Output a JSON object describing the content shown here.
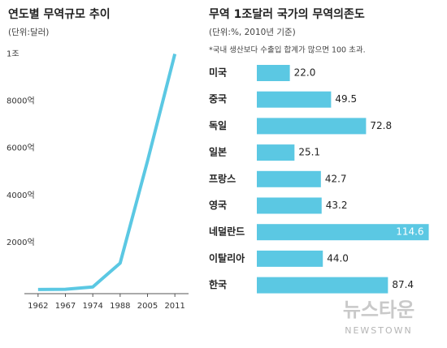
{
  "chart_data": [
    {
      "type": "line",
      "title": "연도별 무역규모 추이",
      "subtitle": "(단위:달러)",
      "categories": [
        "1962",
        "1967",
        "1974",
        "1988",
        "2005",
        "2011"
      ],
      "values": [
        5,
        14,
        112,
        1125,
        5457,
        10000
      ],
      "color": "#5bc8e3",
      "ylim": [
        0,
        10500
      ],
      "yticks": [
        {
          "value": 2000,
          "label": "2000억"
        },
        {
          "value": 4000,
          "label": "4000억"
        },
        {
          "value": 6000,
          "label": "6000억"
        },
        {
          "value": 8000,
          "label": "8000억"
        },
        {
          "value": 10000,
          "label": "1조"
        }
      ]
    },
    {
      "type": "hbar",
      "title": "무역 1조달러 국가의 무역의존도",
      "subtitle": "(단위:%, 2010년 기준)",
      "annotation": "*국내 생산보다 수출입 합계가 많으면 100 초과.",
      "categories": [
        "미국",
        "중국",
        "독일",
        "일본",
        "프랑스",
        "영국",
        "네덜란드",
        "이탈리아",
        "한국"
      ],
      "values": [
        22.0,
        49.5,
        72.8,
        25.1,
        42.7,
        43.2,
        114.6,
        44.0,
        87.4
      ],
      "value_labels": [
        "22.0",
        "49.5",
        "72.8",
        "25.1",
        "42.7",
        "43.2",
        "114.6",
        "44.0",
        "87.4"
      ],
      "color": "#5bc8e3",
      "xlim": [
        0,
        117
      ]
    }
  ],
  "watermark": {
    "name": "뉴스타운",
    "sub": "NEWSTOWN"
  }
}
